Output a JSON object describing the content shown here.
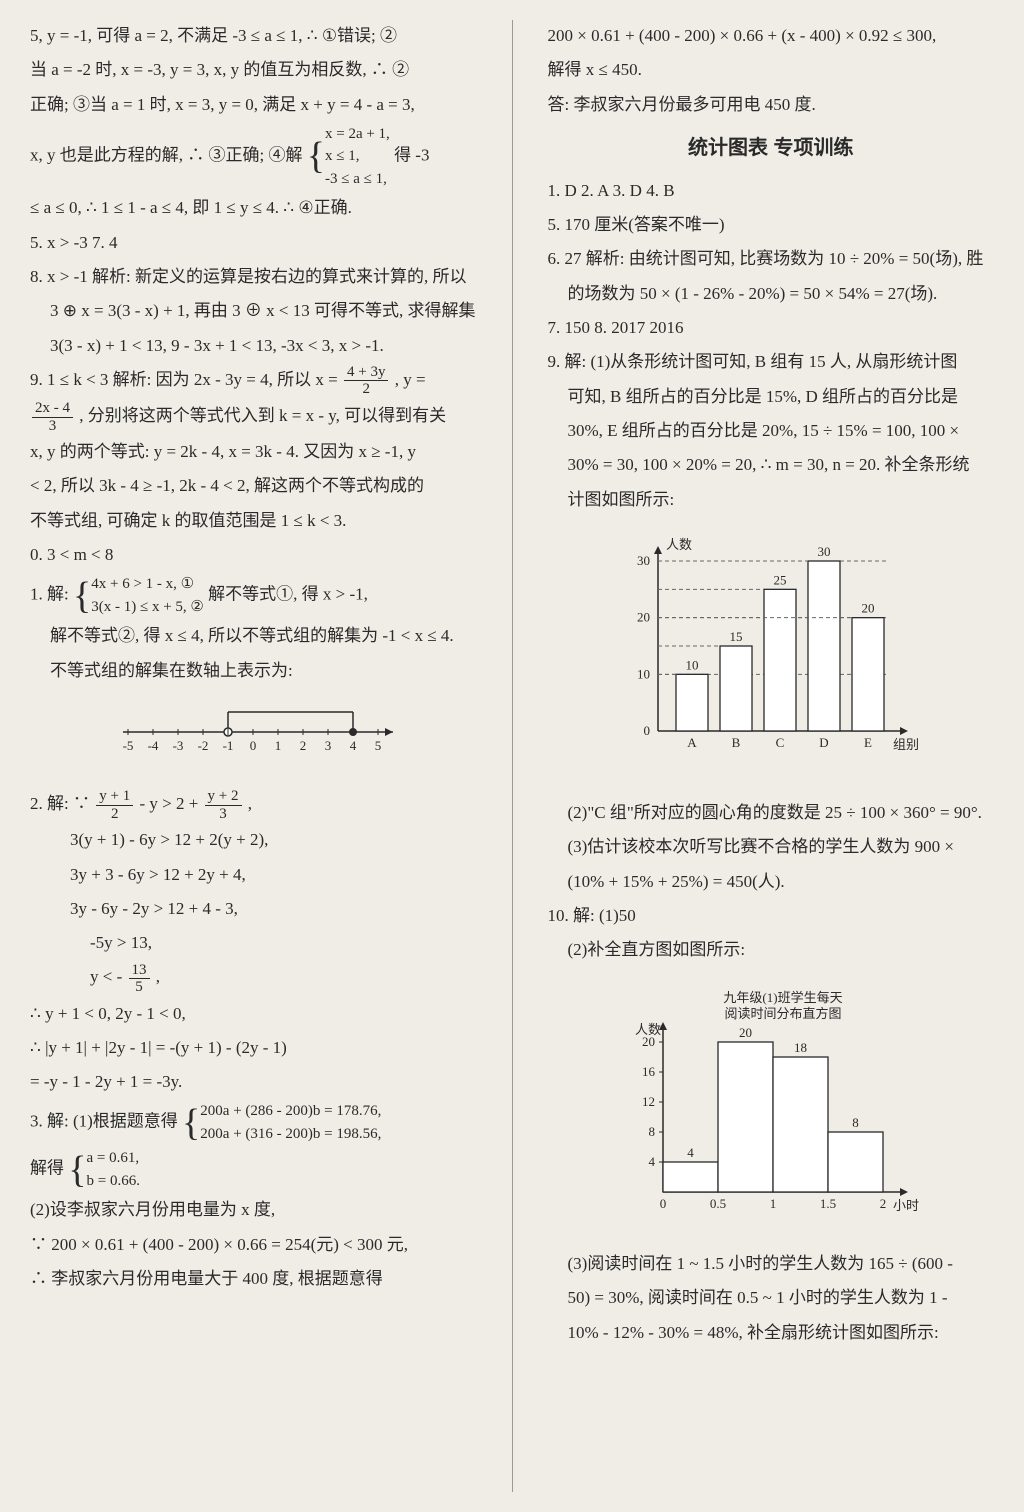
{
  "left": {
    "p1": "5, y = -1, 可得 a = 2, 不满足 -3 ≤ a ≤ 1, ∴ ①错误; ②",
    "p2": "当 a = -2 时, x = -3, y = 3, x, y 的值互为相反数, ∴ ②",
    "p3": "正确; ③当 a = 1 时, x = 3, y = 0, 满足 x + y = 4 - a = 3,",
    "p4a": "x, y 也是此方程的解, ∴ ③正确; ④解",
    "p4b1": "x = 2a + 1,",
    "p4b2": "x ≤ 1,",
    "p4b3": "-3 ≤ a ≤ 1,",
    "p4c": "得 -3",
    "p5": "≤ a ≤ 0, ∴ 1 ≤ 1 - a ≤ 4, 即 1 ≤ y ≤ 4. ∴ ④正确.",
    "q5": "5. x > -3   7. 4",
    "q8a": "8. x > -1   解析: 新定义的运算是按右边的算式来计算的, 所以",
    "q8b": "3 ⊕ x = 3(3 - x) + 1, 再由 3 ⊕ x < 13 可得不等式, 求得解集",
    "q8c": "3(3 - x) + 1 < 13, 9 - 3x + 1 < 13, -3x < 3, x > -1.",
    "q9a": "9. 1 ≤ k < 3   解析: 因为 2x - 3y = 4, 所以 x = ",
    "q9a_frac_n": "4 + 3y",
    "q9a_frac_d": "2",
    "q9a2": ", y =",
    "q9b_frac_n": "2x - 4",
    "q9b_frac_d": "3",
    "q9b": ", 分别将这两个等式代入到 k = x - y, 可以得到有关",
    "q9c": "x, y 的两个等式: y = 2k - 4, x = 3k - 4. 又因为 x ≥ -1, y",
    "q9d": "< 2, 所以 3k - 4 ≥ -1, 2k - 4 < 2, 解这两个不等式构成的",
    "q9e": "不等式组, 可确定 k 的取值范围是 1 ≤ k < 3.",
    "q10": "0. 3 < m < 8",
    "q11a": "1. 解: ",
    "q11b1": "4x + 6 > 1 - x, ①",
    "q11b2": "3(x - 1) ≤ x + 5, ②",
    "q11c": "解不等式①, 得 x > -1,",
    "q11d": "解不等式②, 得 x ≤ 4, 所以不等式组的解集为 -1 < x ≤ 4.",
    "q11e": "不等式组的解集在数轴上表示为:",
    "q12a": "2. 解: ∵ ",
    "q12a_f1n": "y + 1",
    "q12a_f1d": "2",
    "q12a_mid": " - y > 2 + ",
    "q12a_f2n": "y + 2",
    "q12a_f2d": "3",
    "q12a_end": ",",
    "q12b": "3(y + 1) - 6y > 12 + 2(y + 2),",
    "q12c": "3y + 3 - 6y > 12 + 2y + 4,",
    "q12d": "3y - 6y - 2y > 12 + 4 - 3,",
    "q12e": "-5y > 13,",
    "q12f": "y < -",
    "q12f_fn": "13",
    "q12f_fd": "5",
    "q12f_end": ",",
    "q12g": "∴ y + 1 < 0, 2y - 1 < 0,",
    "q12h": "∴ |y + 1| + |2y - 1| = -(y + 1) - (2y - 1)",
    "q12i": "= -y - 1 - 2y + 1 = -3y.",
    "q13a": "3. 解: (1)根据题意得",
    "q13b1": "200a + (286 - 200)b = 178.76,",
    "q13b2": "200a + (316 - 200)b = 198.56,",
    "q13c": "解得",
    "q13c1": "a = 0.61,",
    "q13c2": "b = 0.66.",
    "q13d": "(2)设李叔家六月份用电量为 x 度,",
    "q13e": "∵ 200 × 0.61 + (400 - 200) × 0.66 = 254(元) < 300 元,",
    "q13f": "∴ 李叔家六月份用电量大于 400 度, 根据题意得"
  },
  "right": {
    "p1": "200 × 0.61 + (400 - 200) × 0.66 + (x - 400) × 0.92 ≤ 300,",
    "p2": "解得 x ≤ 450.",
    "p3": "答: 李叔家六月份最多可用电 450 度.",
    "title": "统计图表   专项训练",
    "a1": "1. D   2. A   3. D   4. B",
    "a5": "5. 170 厘米(答案不唯一)",
    "a6a": "6. 27   解析: 由统计图可知, 比赛场数为 10 ÷ 20% = 50(场), 胜",
    "a6b": "的场数为 50 × (1 - 26% - 20%) = 50 × 54% = 27(场).",
    "a7": "7. 150   8. 2017   2016",
    "a9a": "9. 解: (1)从条形统计图可知, B 组有 15 人, 从扇形统计图",
    "a9b": "可知, B 组所占的百分比是 15%, D 组所占的百分比是",
    "a9c": "30%, E 组所占的百分比是 20%, 15 ÷ 15% = 100, 100 ×",
    "a9d": "30% = 30, 100 × 20% = 20, ∴ m = 30, n = 20. 补全条形统",
    "a9e": "计图如图所示:",
    "a9f": "(2)\"C 组\"所对应的圆心角的度数是 25 ÷ 100 × 360° = 90°.",
    "a9g": "(3)估计该校本次听写比赛不合格的学生人数为 900 ×",
    "a9h": "(10% + 15% + 25%) = 450(人).",
    "a10a": "10. 解: (1)50",
    "a10b": "(2)补全直方图如图所示:",
    "a10c": "(3)阅读时间在 1 ~ 1.5 小时的学生人数为 165 ÷ (600 -",
    "a10d": "50) = 30%, 阅读时间在 0.5 ~ 1 小时的学生人数为 1 -",
    "a10e": "10% - 12% - 30% = 48%, 补全扇形统计图如图所示:"
  },
  "chart1": {
    "ylabel": "人数",
    "xlabel": "组别",
    "categories": [
      "A",
      "B",
      "C",
      "D",
      "E"
    ],
    "values": [
      10,
      15,
      25,
      30,
      20
    ],
    "yticks": [
      0,
      10,
      20,
      30
    ],
    "bar_color": "#ffffff",
    "border_color": "#2a2a2a",
    "dash_color": "#666"
  },
  "chart2": {
    "title1": "九年级(1)班学生每天",
    "title2": "阅读时间分布直方图",
    "ylabel": "人数",
    "xlabel": "小时",
    "xticks": [
      "0",
      "0.5",
      "1",
      "1.5",
      "2"
    ],
    "values": [
      4,
      20,
      18,
      8
    ],
    "yticks": [
      4,
      8,
      12,
      16,
      20
    ],
    "bar_color": "#ffffff",
    "border_color": "#2a2a2a"
  },
  "numline": {
    "ticks": [
      -5,
      -4,
      -3,
      -2,
      -1,
      0,
      1,
      2,
      3,
      4,
      5
    ],
    "open_at": -1,
    "closed_at": 4
  }
}
